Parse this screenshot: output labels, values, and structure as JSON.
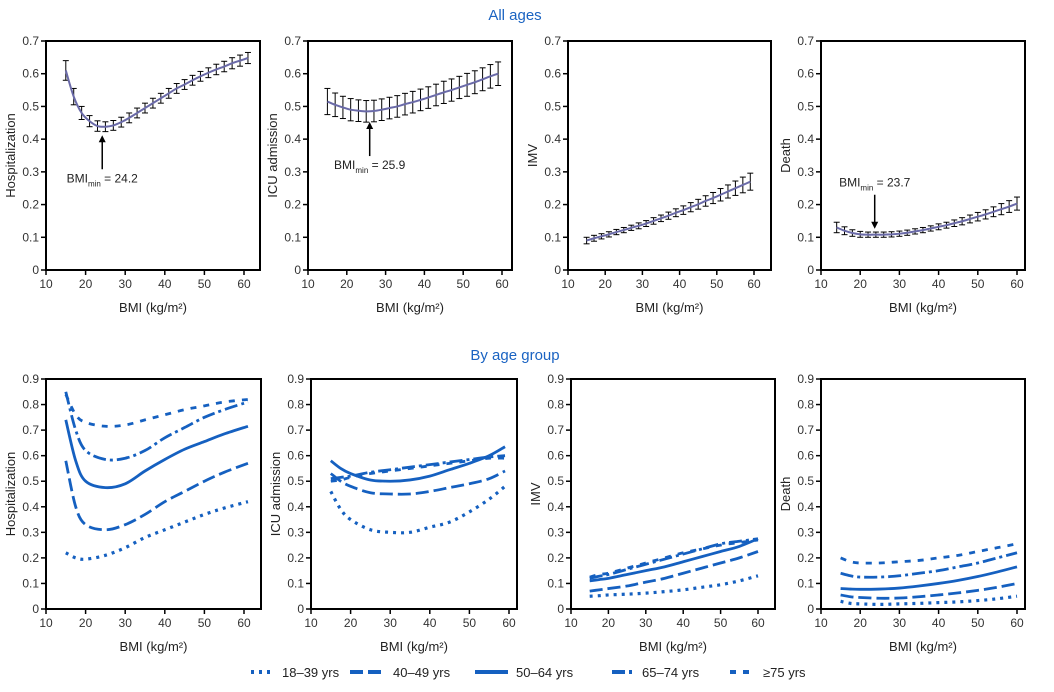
{
  "sections": {
    "top_title": "All ages",
    "bottom_title": "By age group"
  },
  "colors": {
    "series": "#1560c0",
    "section_title": "#1a63c2",
    "ci_line": "#6a6aa8",
    "error_bar": "#000000"
  },
  "legend": {
    "placement": "bottom-center",
    "items": [
      {
        "label": "18–39 yrs",
        "style": "dotted"
      },
      {
        "label": "40–49 yrs",
        "style": "long-dash"
      },
      {
        "label": "50–64 yrs",
        "style": "solid"
      },
      {
        "label": "65–74 yrs",
        "style": "dash-dot"
      },
      {
        "label": "≥75 yrs",
        "style": "short-dash"
      }
    ]
  },
  "chart_data": [
    {
      "type": "line",
      "group": "All ages",
      "ylabel": "Hospitalization",
      "xlabel": "BMI (kg/m²)",
      "xlim": [
        10,
        63
      ],
      "ylim": [
        0,
        0.7
      ],
      "xticks": [
        10,
        20,
        30,
        40,
        50,
        60
      ],
      "yticks": [
        0,
        0.1,
        0.2,
        0.3,
        0.4,
        0.5,
        0.6,
        0.7
      ],
      "grid": false,
      "error_bars": true,
      "x": [
        15,
        17,
        19,
        21,
        23,
        25,
        27,
        29,
        31,
        33,
        35,
        37,
        39,
        41,
        43,
        45,
        47,
        49,
        51,
        53,
        55,
        57,
        59,
        61
      ],
      "y": [
        0.61,
        0.53,
        0.48,
        0.455,
        0.44,
        0.438,
        0.442,
        0.452,
        0.465,
        0.48,
        0.495,
        0.51,
        0.525,
        0.54,
        0.555,
        0.567,
        0.58,
        0.592,
        0.603,
        0.613,
        0.622,
        0.632,
        0.64,
        0.648
      ],
      "ci": [
        0.03,
        0.025,
        0.02,
        0.017,
        0.016,
        0.015,
        0.015,
        0.015,
        0.015,
        0.015,
        0.015,
        0.015,
        0.015,
        0.015,
        0.015,
        0.015,
        0.015,
        0.015,
        0.015,
        0.016,
        0.016,
        0.017,
        0.017,
        0.017
      ],
      "annotation": {
        "prefix": "BMI",
        "sub": "min",
        "text": " = 24.2",
        "x": 24.2,
        "direction": "up"
      }
    },
    {
      "type": "line",
      "group": "All ages",
      "ylabel": "ICU admission",
      "xlabel": "BMI (kg/m²)",
      "xlim": [
        10,
        63
      ],
      "ylim": [
        0,
        0.7
      ],
      "xticks": [
        10,
        20,
        30,
        40,
        50,
        60
      ],
      "yticks": [
        0,
        0.1,
        0.2,
        0.3,
        0.4,
        0.5,
        0.6,
        0.7
      ],
      "grid": false,
      "error_bars": true,
      "x": [
        15,
        17,
        19,
        21,
        23,
        25,
        27,
        29,
        31,
        33,
        35,
        37,
        39,
        41,
        43,
        45,
        47,
        49,
        51,
        53,
        55,
        57,
        59
      ],
      "y": [
        0.515,
        0.505,
        0.497,
        0.49,
        0.487,
        0.485,
        0.486,
        0.49,
        0.495,
        0.5,
        0.507,
        0.513,
        0.52,
        0.527,
        0.535,
        0.543,
        0.55,
        0.558,
        0.566,
        0.574,
        0.583,
        0.592,
        0.6
      ],
      "ci": [
        0.04,
        0.036,
        0.034,
        0.034,
        0.033,
        0.033,
        0.033,
        0.033,
        0.033,
        0.033,
        0.033,
        0.033,
        0.033,
        0.033,
        0.033,
        0.034,
        0.034,
        0.034,
        0.035,
        0.035,
        0.035,
        0.036,
        0.036
      ],
      "annotation": {
        "prefix": "BMI",
        "sub": "min",
        "text": " = 25.9",
        "x": 25.9,
        "direction": "up"
      }
    },
    {
      "type": "line",
      "group": "All ages",
      "ylabel": "IMV",
      "xlabel": "BMI (kg/m²)",
      "xlim": [
        10,
        63
      ],
      "ylim": [
        0,
        0.7
      ],
      "xticks": [
        10,
        20,
        30,
        40,
        50,
        60
      ],
      "yticks": [
        0,
        0.1,
        0.2,
        0.3,
        0.4,
        0.5,
        0.6,
        0.7
      ],
      "grid": false,
      "error_bars": true,
      "x": [
        15,
        17,
        19,
        21,
        23,
        25,
        27,
        29,
        31,
        33,
        35,
        37,
        39,
        41,
        43,
        45,
        47,
        49,
        51,
        53,
        55,
        57,
        59
      ],
      "y": [
        0.09,
        0.097,
        0.103,
        0.109,
        0.116,
        0.122,
        0.129,
        0.135,
        0.142,
        0.15,
        0.158,
        0.166,
        0.175,
        0.183,
        0.192,
        0.201,
        0.211,
        0.22,
        0.23,
        0.24,
        0.25,
        0.26,
        0.27
      ],
      "ci": [
        0.01,
        0.009,
        0.008,
        0.008,
        0.008,
        0.008,
        0.008,
        0.009,
        0.009,
        0.01,
        0.01,
        0.011,
        0.012,
        0.013,
        0.014,
        0.015,
        0.016,
        0.017,
        0.019,
        0.02,
        0.022,
        0.024,
        0.026
      ]
    },
    {
      "type": "line",
      "group": "All ages",
      "ylabel": "Death",
      "xlabel": "BMI (kg/m²)",
      "xlim": [
        10,
        63
      ],
      "ylim": [
        0,
        0.7
      ],
      "xticks": [
        10,
        20,
        30,
        40,
        50,
        60
      ],
      "yticks": [
        0,
        0.1,
        0.2,
        0.3,
        0.4,
        0.5,
        0.6,
        0.7
      ],
      "grid": false,
      "error_bars": true,
      "x": [
        14,
        16,
        18,
        20,
        22,
        24,
        26,
        28,
        30,
        32,
        34,
        36,
        38,
        40,
        42,
        44,
        46,
        48,
        50,
        52,
        54,
        56,
        58,
        60
      ],
      "y": [
        0.13,
        0.12,
        0.113,
        0.109,
        0.108,
        0.108,
        0.108,
        0.109,
        0.111,
        0.114,
        0.118,
        0.122,
        0.127,
        0.132,
        0.137,
        0.143,
        0.149,
        0.156,
        0.163,
        0.17,
        0.178,
        0.186,
        0.194,
        0.203
      ],
      "ci": [
        0.016,
        0.012,
        0.01,
        0.009,
        0.008,
        0.008,
        0.008,
        0.008,
        0.008,
        0.008,
        0.008,
        0.008,
        0.008,
        0.009,
        0.009,
        0.01,
        0.011,
        0.012,
        0.013,
        0.014,
        0.015,
        0.017,
        0.018,
        0.02
      ],
      "annotation": {
        "prefix": "BMI",
        "sub": "min",
        "text": " = 23.7",
        "x": 23.7,
        "direction": "down"
      }
    },
    {
      "type": "line",
      "group": "By age group",
      "ylabel": "Hospitalization",
      "xlabel": "BMI (kg/m²)",
      "xlim": [
        10,
        63
      ],
      "ylim": [
        0,
        0.9
      ],
      "xticks": [
        10,
        20,
        30,
        40,
        50,
        60
      ],
      "yticks": [
        0,
        0.1,
        0.2,
        0.3,
        0.4,
        0.5,
        0.6,
        0.7,
        0.8,
        0.9
      ],
      "grid": false,
      "x": [
        15,
        17.5,
        20,
        25,
        30,
        35,
        40,
        45,
        50,
        55,
        61
      ],
      "series": [
        {
          "name": "18–39 yrs",
          "values": [
            0.22,
            0.2,
            0.195,
            0.21,
            0.24,
            0.28,
            0.31,
            0.34,
            0.37,
            0.395,
            0.42
          ]
        },
        {
          "name": "40–49 yrs",
          "values": [
            0.58,
            0.4,
            0.33,
            0.31,
            0.33,
            0.37,
            0.42,
            0.46,
            0.5,
            0.535,
            0.57
          ]
        },
        {
          "name": "50–64 yrs",
          "values": [
            0.74,
            0.58,
            0.5,
            0.475,
            0.49,
            0.54,
            0.585,
            0.625,
            0.655,
            0.685,
            0.715
          ]
        },
        {
          "name": "65–74 yrs",
          "values": [
            0.85,
            0.7,
            0.62,
            0.585,
            0.59,
            0.62,
            0.67,
            0.71,
            0.75,
            0.78,
            0.81
          ]
        },
        {
          "name": "≥75 yrs",
          "values": [
            0.84,
            0.76,
            0.73,
            0.715,
            0.72,
            0.74,
            0.76,
            0.78,
            0.795,
            0.81,
            0.82
          ]
        }
      ]
    },
    {
      "type": "line",
      "group": "By age group",
      "ylabel": "ICU admission",
      "xlabel": "BMI (kg/m²)",
      "xlim": [
        10,
        63
      ],
      "ylim": [
        0,
        0.9
      ],
      "xticks": [
        10,
        20,
        30,
        40,
        50,
        60
      ],
      "yticks": [
        0,
        0.1,
        0.2,
        0.3,
        0.4,
        0.5,
        0.6,
        0.7,
        0.8,
        0.9
      ],
      "grid": false,
      "x": [
        15,
        17.5,
        20,
        25,
        30,
        35,
        40,
        45,
        50,
        55,
        59
      ],
      "series": [
        {
          "name": "18–39 yrs",
          "values": [
            0.46,
            0.39,
            0.35,
            0.31,
            0.3,
            0.3,
            0.32,
            0.34,
            0.38,
            0.43,
            0.48
          ]
        },
        {
          "name": "40–49 yrs",
          "values": [
            0.53,
            0.5,
            0.48,
            0.455,
            0.45,
            0.45,
            0.46,
            0.475,
            0.49,
            0.51,
            0.54
          ]
        },
        {
          "name": "50–64 yrs",
          "values": [
            0.58,
            0.55,
            0.53,
            0.505,
            0.5,
            0.505,
            0.52,
            0.545,
            0.57,
            0.6,
            0.635
          ]
        },
        {
          "name": "65–74 yrs",
          "values": [
            0.51,
            0.515,
            0.52,
            0.535,
            0.545,
            0.555,
            0.565,
            0.575,
            0.585,
            0.595,
            0.6
          ]
        },
        {
          "name": "≥75 yrs",
          "values": [
            0.5,
            0.505,
            0.515,
            0.53,
            0.54,
            0.55,
            0.56,
            0.57,
            0.58,
            0.59,
            0.59
          ]
        }
      ]
    },
    {
      "type": "line",
      "group": "By age group",
      "ylabel": "IMV",
      "xlabel": "BMI (kg/m²)",
      "xlim": [
        10,
        63
      ],
      "ylim": [
        0,
        0.9
      ],
      "xticks": [
        10,
        20,
        30,
        40,
        50,
        60
      ],
      "yticks": [
        0,
        0.1,
        0.2,
        0.3,
        0.4,
        0.5,
        0.6,
        0.7,
        0.8,
        0.9
      ],
      "grid": false,
      "x": [
        15,
        17.5,
        20,
        25,
        30,
        35,
        40,
        45,
        50,
        55,
        60
      ],
      "series": [
        {
          "name": "18–39 yrs",
          "values": [
            0.05,
            0.052,
            0.055,
            0.058,
            0.062,
            0.068,
            0.075,
            0.085,
            0.095,
            0.11,
            0.13
          ]
        },
        {
          "name": "40–49 yrs",
          "values": [
            0.07,
            0.075,
            0.08,
            0.09,
            0.105,
            0.12,
            0.14,
            0.16,
            0.18,
            0.2,
            0.225
          ]
        },
        {
          "name": "50–64 yrs",
          "values": [
            0.11,
            0.115,
            0.12,
            0.135,
            0.15,
            0.165,
            0.185,
            0.205,
            0.225,
            0.245,
            0.275
          ]
        },
        {
          "name": "65–74 yrs",
          "values": [
            0.12,
            0.128,
            0.135,
            0.155,
            0.175,
            0.195,
            0.215,
            0.235,
            0.255,
            0.265,
            0.275
          ]
        },
        {
          "name": "≥75 yrs",
          "values": [
            0.125,
            0.135,
            0.14,
            0.16,
            0.18,
            0.2,
            0.22,
            0.235,
            0.25,
            0.26,
            0.27
          ]
        }
      ]
    },
    {
      "type": "line",
      "group": "By age group",
      "ylabel": "Death",
      "xlabel": "BMI (kg/m²)",
      "xlim": [
        10,
        63
      ],
      "ylim": [
        0,
        0.9
      ],
      "xticks": [
        10,
        20,
        30,
        40,
        50,
        60
      ],
      "yticks": [
        0,
        0.1,
        0.2,
        0.3,
        0.4,
        0.5,
        0.6,
        0.7,
        0.8,
        0.9
      ],
      "grid": false,
      "x": [
        15,
        17.5,
        20,
        25,
        30,
        35,
        40,
        45,
        50,
        55,
        60
      ],
      "series": [
        {
          "name": "18–39 yrs",
          "values": [
            0.03,
            0.022,
            0.02,
            0.018,
            0.02,
            0.022,
            0.025,
            0.028,
            0.033,
            0.04,
            0.05
          ]
        },
        {
          "name": "40–49 yrs",
          "values": [
            0.055,
            0.048,
            0.045,
            0.042,
            0.043,
            0.048,
            0.055,
            0.063,
            0.073,
            0.085,
            0.1
          ]
        },
        {
          "name": "50–64 yrs",
          "values": [
            0.08,
            0.078,
            0.077,
            0.078,
            0.082,
            0.09,
            0.1,
            0.112,
            0.127,
            0.145,
            0.165
          ]
        },
        {
          "name": "65–74 yrs",
          "values": [
            0.14,
            0.13,
            0.125,
            0.125,
            0.13,
            0.14,
            0.15,
            0.165,
            0.18,
            0.2,
            0.22
          ]
        },
        {
          "name": "≥75 yrs",
          "values": [
            0.2,
            0.185,
            0.18,
            0.18,
            0.185,
            0.19,
            0.2,
            0.21,
            0.225,
            0.24,
            0.255
          ]
        }
      ]
    }
  ]
}
